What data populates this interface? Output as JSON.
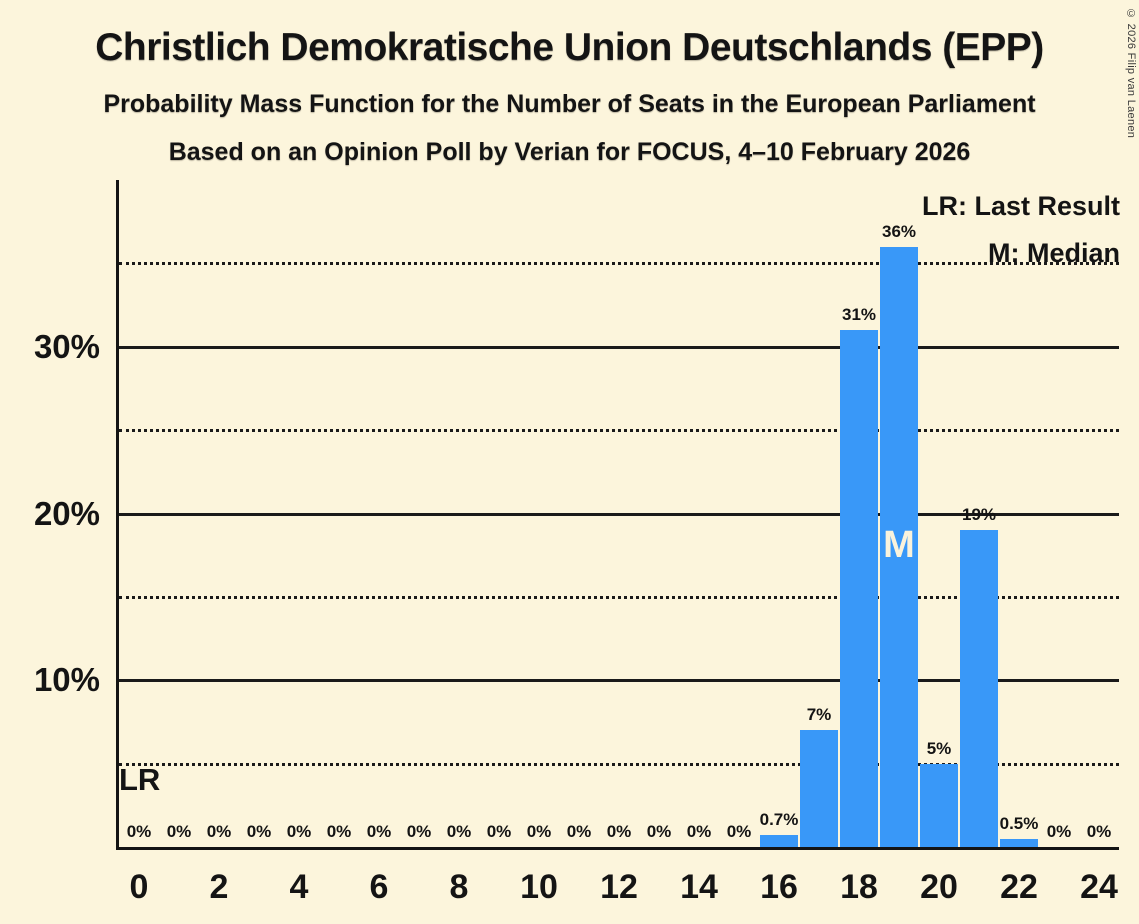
{
  "page": {
    "copyright": "© 2026 Filip van Laenen"
  },
  "legend": {
    "lr": "LR: Last Result",
    "m": "M: Median"
  },
  "annotations": {
    "lr_label": "LR",
    "median_label": "M"
  },
  "colors": {
    "background": "#FCF5DC",
    "bar": "#3998F8",
    "text": "#141414",
    "gridline": "#1A1A1A",
    "median_text": "#FAF3DC"
  },
  "chart_data": {
    "type": "bar",
    "title": "Christlich Demokratische Union Deutschlands (EPP)",
    "subtitle": "Probability Mass Function for the Number of Seats in the European Parliament",
    "poll_info": "Based on an Opinion Poll by Verian for FOCUS, 4–10 February 2026",
    "categories": [
      0,
      1,
      2,
      3,
      4,
      5,
      6,
      7,
      8,
      9,
      10,
      11,
      12,
      13,
      14,
      15,
      16,
      17,
      18,
      19,
      20,
      21,
      22,
      23,
      24
    ],
    "values": [
      0,
      0,
      0,
      0,
      0,
      0,
      0,
      0,
      0,
      0,
      0,
      0,
      0,
      0,
      0,
      0,
      0.7,
      7,
      31,
      36,
      5,
      19,
      0.5,
      0,
      0
    ],
    "bar_labels": [
      "0%",
      "0%",
      "0%",
      "0%",
      "0%",
      "0%",
      "0%",
      "0%",
      "0%",
      "0%",
      "0%",
      "0%",
      "0%",
      "0%",
      "0%",
      "0%",
      "0.7%",
      "7%",
      "31%",
      "36%",
      "5%",
      "19%",
      "0.5%",
      "0%",
      "0%"
    ],
    "x_tick_labels": [
      "0",
      "2",
      "4",
      "6",
      "8",
      "10",
      "12",
      "14",
      "16",
      "18",
      "20",
      "22",
      "24"
    ],
    "y_ticks": [
      {
        "pct": 10,
        "label": "10%"
      },
      {
        "pct": 20,
        "label": "20%"
      },
      {
        "pct": 30,
        "label": "30%"
      }
    ],
    "solid_gridlines": [
      10,
      20,
      30
    ],
    "dotted_gridlines": [
      5,
      15,
      25,
      35
    ],
    "ylim": [
      0,
      40
    ],
    "grid": true,
    "legend_position": "top-right",
    "legend_entries": [
      "LR: Last Result",
      "M: Median"
    ],
    "median_seat": 19,
    "last_result_line_pct": 5
  }
}
